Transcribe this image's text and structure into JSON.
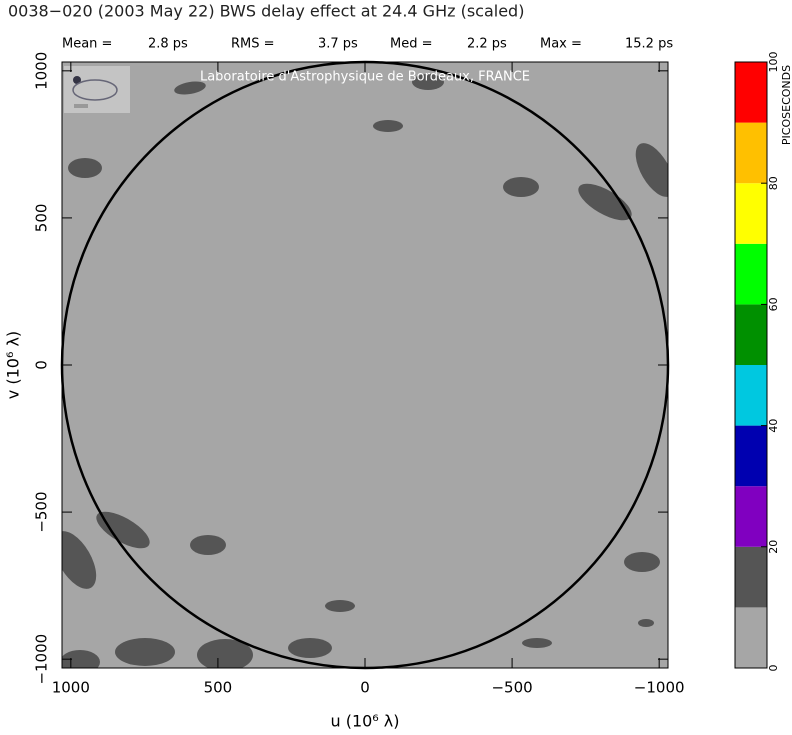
{
  "chart_data": {
    "type": "heatmap",
    "title": "0038−020  (2003 May 22)   BWS delay effect at 24.4 GHz (scaled)",
    "stats": [
      {
        "label": "Mean =",
        "value": "2.8 ps"
      },
      {
        "label": "RMS =",
        "value": "3.7 ps"
      },
      {
        "label": "Med =",
        "value": "2.2 ps"
      },
      {
        "label": "Max =",
        "value": "15.2 ps"
      }
    ],
    "watermark": "Laboratoire d'Astrophysique de Bordeaux, FRANCE",
    "xlabel": "u  (10⁶ λ)",
    "ylabel": "v  (10⁶ λ)",
    "xlim": [
      1030,
      -1030
    ],
    "ylim": [
      -1030,
      1030
    ],
    "xticks": [
      1000,
      500,
      0,
      {
        "value": -500,
        "label": "−500"
      },
      {
        "value": -1000,
        "label": "−1000"
      }
    ],
    "yticks": [
      {
        "value": -1000,
        "label": "−1000"
      },
      {
        "value": -500,
        "label": "−500"
      },
      0,
      500,
      1000
    ],
    "colorbar": {
      "label": "PICOSECONDS",
      "lim": [
        0,
        100
      ],
      "ticks": [
        0,
        20,
        40,
        60,
        80,
        100
      ],
      "levels": [
        0,
        10,
        20,
        30,
        40,
        50,
        60,
        70,
        80,
        90,
        100
      ],
      "colors": [
        "#a6a6a6",
        "#555555",
        "#8000c0",
        "#0000b0",
        "#00c8e0",
        "#009000",
        "#00ff00",
        "#ffff00",
        "#ffc000",
        "#ff0000"
      ]
    }
  }
}
